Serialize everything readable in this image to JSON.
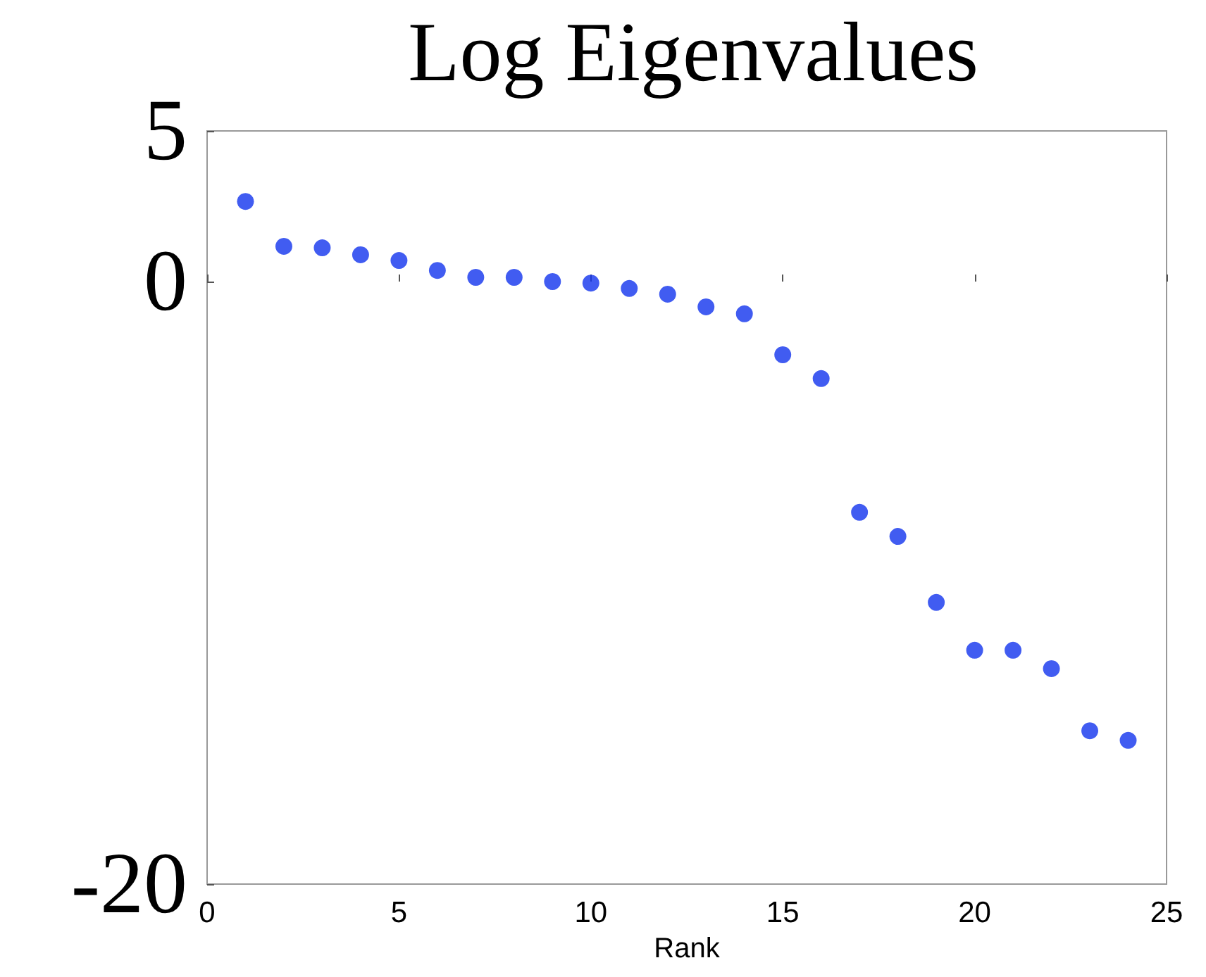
{
  "chart_data": {
    "type": "scatter",
    "title": "Log Eigenvalues",
    "xlabel": "Rank",
    "x": [
      1,
      2,
      3,
      4,
      5,
      6,
      7,
      8,
      9,
      10,
      11,
      12,
      13,
      14,
      15,
      16,
      17,
      18,
      19,
      20,
      21,
      22,
      23,
      24
    ],
    "series": [
      {
        "color": "#1133ee",
        "values": [
          2.66,
          1.17,
          1.12,
          0.89,
          0.7,
          0.37,
          0.14,
          0.14,
          0.0,
          -0.05,
          -0.23,
          -0.42,
          -0.84,
          -1.07,
          -2.43,
          -3.22,
          -7.66,
          -8.46,
          -10.65,
          -12.24,
          -12.24,
          -12.85,
          -14.91,
          -15.23
        ]
      }
    ],
    "xlim": [
      0,
      25
    ],
    "xticks": [
      0,
      5,
      10,
      15,
      20,
      25
    ],
    "ylim": [
      -20,
      5
    ],
    "yticks": [
      5,
      0,
      -20
    ],
    "marker": "circle",
    "grid": false
  }
}
